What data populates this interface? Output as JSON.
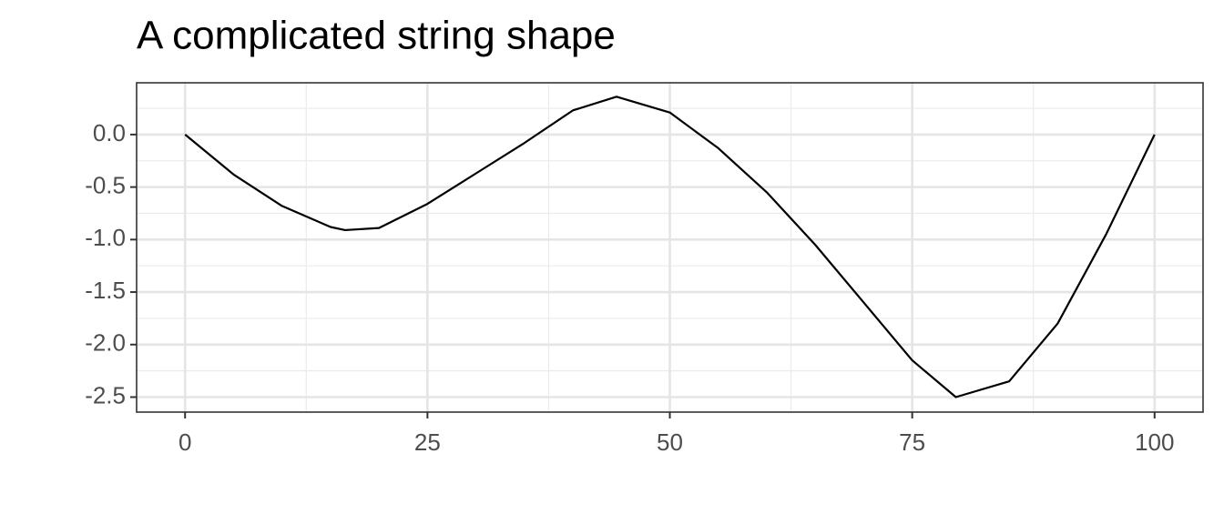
{
  "chart_data": {
    "type": "line",
    "title": "A complicated string shape",
    "x": [
      0,
      5,
      10,
      15,
      16.5,
      20,
      25,
      30,
      35,
      40,
      44.5,
      50,
      55,
      60,
      65,
      70,
      75,
      79.5,
      85,
      90,
      95,
      100
    ],
    "series": [
      {
        "color": "#000000",
        "values": [
          0,
          -0.38,
          -0.68,
          -0.88,
          -0.91,
          -0.89,
          -0.66,
          -0.37,
          -0.08,
          0.23,
          0.36,
          0.21,
          -0.13,
          -0.55,
          -1.05,
          -1.6,
          -2.15,
          -2.5,
          -2.35,
          -1.8,
          -0.95,
          0
        ]
      }
    ],
    "xlim": [
      -5,
      105
    ],
    "ylim": [
      -2.643,
      0.493
    ],
    "xticks": [
      0,
      25,
      50,
      75,
      100
    ],
    "yticks": [
      {
        "value": 0,
        "label": "0.0"
      },
      {
        "value": -0.5,
        "label": "-0.5"
      },
      {
        "value": -1,
        "label": "-1.0"
      },
      {
        "value": -1.5,
        "label": "-1.5"
      },
      {
        "value": -2,
        "label": "-2.0"
      },
      {
        "value": -2.5,
        "label": "-2.5"
      }
    ],
    "xminor": [
      12.5,
      37.5,
      62.5,
      87.5
    ],
    "yminor": [
      0.25,
      -0.25,
      -0.75,
      -1.25,
      -1.75,
      -2.25
    ],
    "grid": true
  }
}
